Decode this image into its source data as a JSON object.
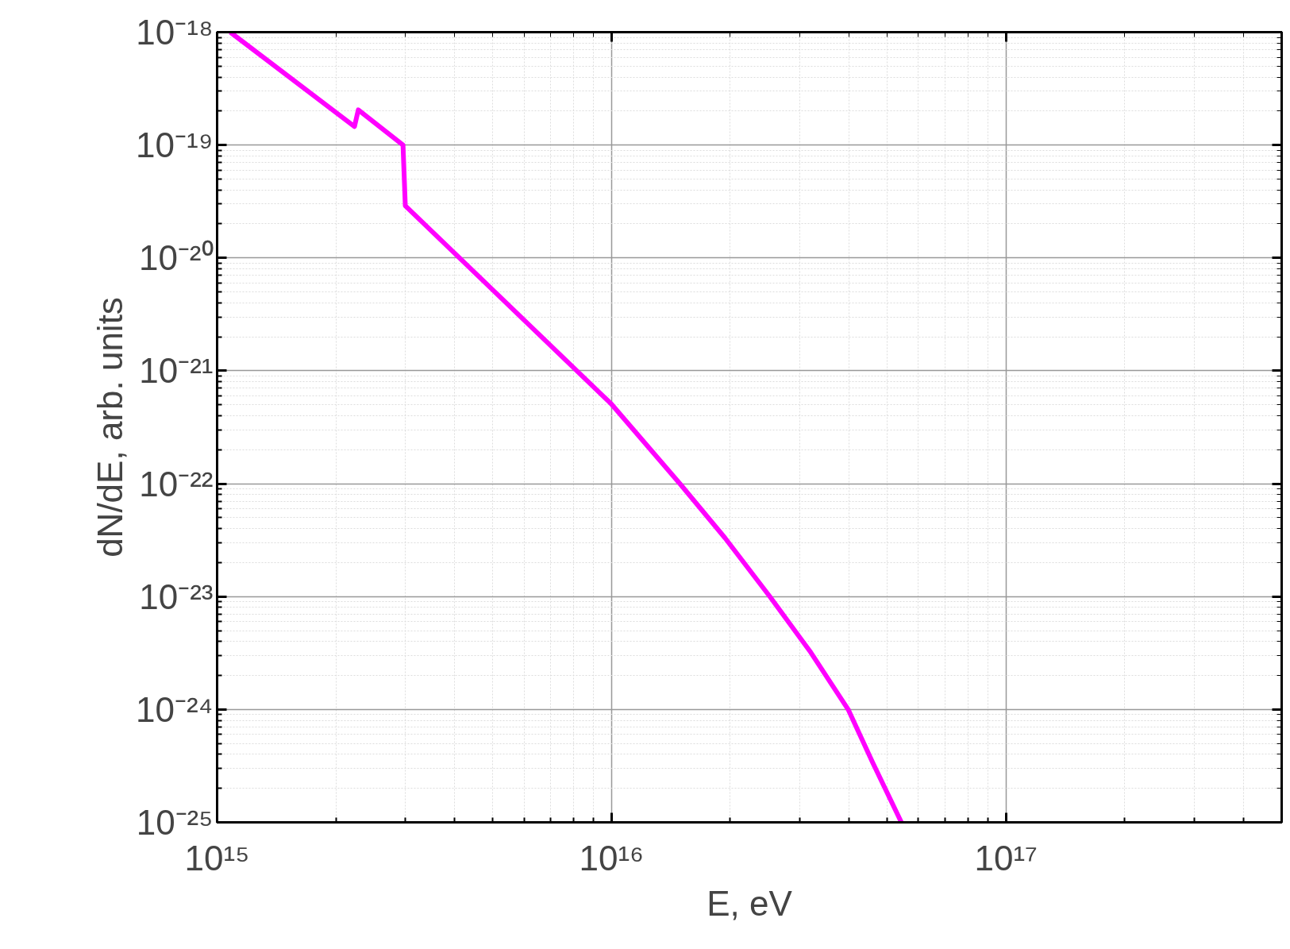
{
  "chart_data": {
    "type": "line",
    "xlabel": "E, eV",
    "ylabel": "dN/dE, arb. units",
    "log": "xy",
    "grid": true,
    "marker": "none",
    "line_style": "solid",
    "xlim": [
      1000000000000000.0,
      5e+17
    ],
    "ylim": [
      1e-25,
      1e-18
    ],
    "xticks": [
      {
        "value": 1000000000000000.0,
        "label": "10¹⁵"
      },
      {
        "value": 1e+16,
        "label": "10¹⁶"
      },
      {
        "value": 1e+17,
        "label": "10¹⁷"
      }
    ],
    "yticks": [
      {
        "value": 1e-25,
        "label": "10⁻²⁵"
      },
      {
        "value": 1e-24,
        "label": "10⁻²⁴"
      },
      {
        "value": 1e-23,
        "label": "10⁻²³"
      },
      {
        "value": 1e-22,
        "label": "10⁻²²"
      },
      {
        "value": 1e-21,
        "label": "10⁻²¹"
      },
      {
        "value": 1e-20,
        "label": "10⁻²⁰"
      },
      {
        "value": 1e-19,
        "label": "10⁻¹⁹"
      },
      {
        "value": 1e-18,
        "label": "10⁻¹⁸"
      }
    ],
    "series": [
      {
        "color": "#ff00ff",
        "x": [
          1080000000000000.0,
          2230000000000000.0,
          2280000000000000.0,
          2960000000000000.0,
          3000000000000000.0,
          1e+16,
          1.49e+16,
          1.94e+16,
          2.52e+16,
          3.2e+16,
          3.98e+16,
          4.59e+16,
          5.43e+16
        ],
        "values": [
          1e-18,
          1.46e-19,
          2.05e-19,
          1e-19,
          2.9e-20,
          5.06e-22,
          1e-22,
          3.3e-23,
          1e-23,
          3.2e-24,
          1e-24,
          3.4e-25,
          1e-25
        ]
      }
    ]
  }
}
